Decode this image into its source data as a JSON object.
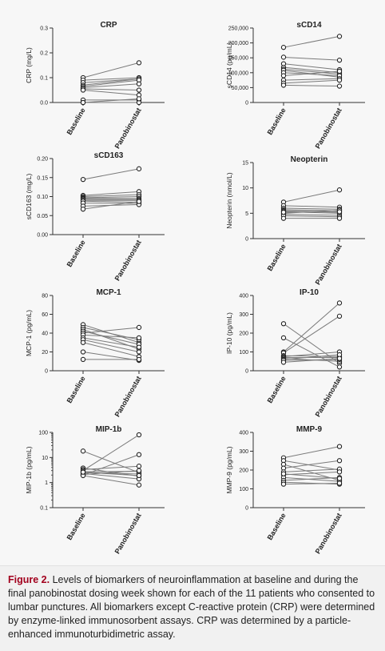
{
  "caption": {
    "label": "Figure 2.",
    "text": " Levels of biomarkers of neuroinflammation at baseline and during the final panobinostat dosing week shown for each of the 11 patients who consented to lumbar punctures. All biomarkers except C-reactive protein (CRP) were determined by enzyme-linked immunosorbent assays. CRP was determined by a particle-enhanced immunoturbidimetric assay."
  },
  "colors": {
    "line": "#7a7a7a",
    "marker": "#222222",
    "axis": "#333333",
    "caption_label": "#a2001d"
  },
  "chart_data": [
    {
      "type": "line",
      "title": "CRP",
      "ylabel": "CRP (mg/L)",
      "categories": [
        "Baseline",
        "Panobinostat"
      ],
      "ylim": [
        0,
        0.3
      ],
      "yticks": [
        0,
        0.1,
        0.2,
        0.3
      ],
      "ytick_labels": [
        "0.0",
        "0.1",
        "0.2",
        "0.3"
      ],
      "pairs": [
        [
          0.1,
          0.16
        ],
        [
          0.09,
          0.1
        ],
        [
          0.08,
          0.095
        ],
        [
          0.07,
          0.095
        ],
        [
          0.065,
          0.09
        ],
        [
          0.06,
          0.075
        ],
        [
          0.055,
          0.05
        ],
        [
          0.05,
          0.03
        ],
        [
          0.01,
          0.01
        ],
        [
          0.0,
          0.0
        ],
        [
          0.0,
          0.015
        ]
      ]
    },
    {
      "type": "line",
      "title": "sCD14",
      "ylabel": "sCD14 (pg/mL)",
      "categories": [
        "Baseline",
        "Panobinostat"
      ],
      "ylim": [
        0,
        250000
      ],
      "yticks": [
        0,
        50000,
        100000,
        150000,
        200000,
        250000
      ],
      "ytick_labels": [
        "0",
        "50,000",
        "100,000",
        "150,000",
        "200,000",
        "250,000"
      ],
      "pairs": [
        [
          185000,
          222000
        ],
        [
          152000,
          142000
        ],
        [
          130000,
          110000
        ],
        [
          118000,
          100000
        ],
        [
          112000,
          95000
        ],
        [
          108000,
          85000
        ],
        [
          100000,
          90000
        ],
        [
          90000,
          105000
        ],
        [
          75000,
          80000
        ],
        [
          65000,
          75000
        ],
        [
          58000,
          55000
        ]
      ]
    },
    {
      "type": "line",
      "title": "sCD163",
      "ylabel": "sCD163 (mg/L)",
      "categories": [
        "Baseline",
        "Panobinostat"
      ],
      "ylim": [
        0,
        0.2
      ],
      "yticks": [
        0,
        0.05,
        0.1,
        0.15,
        0.2
      ],
      "ytick_labels": [
        "0.00",
        "0.05",
        "0.10",
        "0.15",
        "0.20"
      ],
      "pairs": [
        [
          0.145,
          0.173
        ],
        [
          0.103,
          0.113
        ],
        [
          0.1,
          0.105
        ],
        [
          0.097,
          0.1
        ],
        [
          0.095,
          0.095
        ],
        [
          0.093,
          0.092
        ],
        [
          0.09,
          0.09
        ],
        [
          0.088,
          0.085
        ],
        [
          0.083,
          0.082
        ],
        [
          0.075,
          0.079
        ],
        [
          0.067,
          0.087
        ]
      ]
    },
    {
      "type": "line",
      "title": "Neopterin",
      "ylabel": "Neopterin (nmol/L)",
      "categories": [
        "Baseline",
        "Panobinostat"
      ],
      "ylim": [
        0,
        15
      ],
      "yticks": [
        0,
        5,
        10,
        15
      ],
      "ytick_labels": [
        "0",
        "5",
        "10",
        "15"
      ],
      "pairs": [
        [
          7.2,
          9.6
        ],
        [
          6.5,
          6.2
        ],
        [
          6.0,
          5.8
        ],
        [
          5.7,
          5.5
        ],
        [
          5.5,
          5.2
        ],
        [
          5.3,
          5.0
        ],
        [
          5.0,
          5.6
        ],
        [
          4.8,
          4.6
        ],
        [
          4.5,
          4.3
        ],
        [
          4.0,
          4.0
        ],
        [
          5.2,
          5.3
        ]
      ]
    },
    {
      "type": "line",
      "title": "MCP-1",
      "ylabel": "MCP-1 (pg/mL)",
      "categories": [
        "Baseline",
        "Panobinostat"
      ],
      "ylim": [
        0,
        80
      ],
      "yticks": [
        0,
        20,
        40,
        60,
        80
      ],
      "ytick_labels": [
        "0",
        "20",
        "40",
        "60",
        "80"
      ],
      "pairs": [
        [
          49,
          30
        ],
        [
          46,
          33
        ],
        [
          44,
          23
        ],
        [
          42,
          28
        ],
        [
          40,
          46
        ],
        [
          38,
          35
        ],
        [
          35,
          25
        ],
        [
          33,
          20
        ],
        [
          30,
          15
        ],
        [
          20,
          11
        ],
        [
          12,
          12
        ]
      ]
    },
    {
      "type": "line",
      "title": "IP-10",
      "ylabel": "IP-10 (pg/mL)",
      "categories": [
        "Baseline",
        "Panobinostat"
      ],
      "ylim": [
        0,
        400
      ],
      "yticks": [
        0,
        100,
        200,
        300,
        400
      ],
      "ytick_labels": [
        "0",
        "100",
        "200",
        "300",
        "400"
      ],
      "pairs": [
        [
          250,
          40
        ],
        [
          175,
          20
        ],
        [
          100,
          360
        ],
        [
          95,
          290
        ],
        [
          80,
          75
        ],
        [
          75,
          100
        ],
        [
          70,
          70
        ],
        [
          65,
          50
        ],
        [
          60,
          85
        ],
        [
          55,
          60
        ],
        [
          45,
          65
        ]
      ]
    },
    {
      "type": "line",
      "title": "MIP-1b",
      "ylabel": "MIP-1b (pg/mL)",
      "categories": [
        "Baseline",
        "Panobinostat"
      ],
      "yscale": "log",
      "ylim": [
        0.1,
        100
      ],
      "yticks": [
        0.1,
        1,
        10,
        100
      ],
      "ytick_labels": [
        "0.1",
        "1",
        "10",
        "100"
      ],
      "pairs": [
        [
          18,
          2.5
        ],
        [
          3.8,
          1.8
        ],
        [
          3.3,
          4.5
        ],
        [
          3.0,
          80
        ],
        [
          2.7,
          2.8
        ],
        [
          2.5,
          2.2
        ],
        [
          2.3,
          1.4
        ],
        [
          2.1,
          3.0
        ],
        [
          2.0,
          13
        ],
        [
          1.9,
          0.8
        ],
        [
          2.6,
          1.9
        ]
      ]
    },
    {
      "type": "line",
      "title": "MMP-9",
      "ylabel": "MMP-9 (pg/mL)",
      "categories": [
        "Baseline",
        "Panobinostat"
      ],
      "ylim": [
        0,
        400
      ],
      "yticks": [
        0,
        100,
        200,
        300,
        400
      ],
      "ytick_labels": [
        "0",
        "100",
        "200",
        "300",
        "400"
      ],
      "pairs": [
        [
          265,
          325
        ],
        [
          250,
          200
        ],
        [
          230,
          145
        ],
        [
          210,
          250
        ],
        [
          190,
          205
        ],
        [
          175,
          190
        ],
        [
          160,
          140
        ],
        [
          145,
          160
        ],
        [
          135,
          125
        ],
        [
          125,
          130
        ],
        [
          180,
          155
        ]
      ]
    }
  ]
}
